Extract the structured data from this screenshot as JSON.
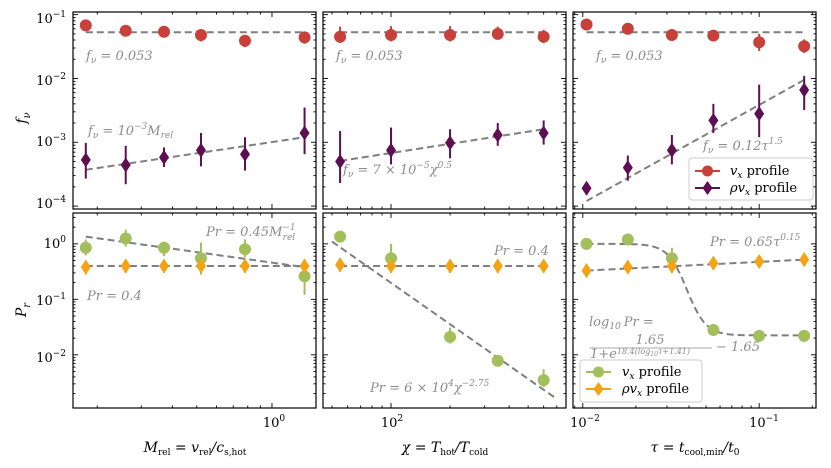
{
  "colors": {
    "red": "#c8403a",
    "purple": "#5e0f52",
    "green": "#a2bf5c",
    "orange": "#f5a313",
    "fit": "#7f7f7f"
  },
  "chart_data": [
    {
      "type": "scatter",
      "panel": "top-left",
      "ylabel": "f_ν",
      "yscale": "log",
      "xscale": "log",
      "xlim": [
        0.16,
        1.5
      ],
      "ylim": [
        9e-05,
        0.11
      ],
      "ytick_labels": [
        "10^-4",
        "10^-3",
        "10^-2",
        "10^-1"
      ],
      "series": [
        {
          "name": "v_x profile",
          "x": [
            0.18,
            0.26,
            0.37,
            0.52,
            0.78,
            1.35
          ],
          "y": [
            0.068,
            0.056,
            0.054,
            0.048,
            0.039,
            0.044
          ],
          "yerr_low": [
            0.059,
            0.048,
            0.047,
            0.038,
            0.031,
            0.035
          ],
          "yerr_high": [
            0.078,
            0.064,
            0.062,
            0.058,
            0.047,
            0.053
          ]
        },
        {
          "name": "ρv_x profile",
          "x": [
            0.18,
            0.26,
            0.37,
            0.52,
            0.78,
            1.35
          ],
          "y": [
            0.00053,
            0.00044,
            0.00058,
            0.00075,
            0.00065,
            0.0014
          ],
          "yerr_low": [
            0.00027,
            0.00022,
            0.00041,
            0.00042,
            0.00036,
            0.00065
          ],
          "yerr_high": [
            0.00098,
            0.00088,
            0.00083,
            0.0014,
            0.0012,
            0.0035
          ]
        }
      ],
      "fits": [
        {
          "y_start": 0.053,
          "y_end": 0.053
        },
        {
          "y_start": 0.00037,
          "y_end": 0.0012
        }
      ],
      "annotations": [
        "f_ν = 0.053",
        "f_ν = 10^-3 M_rel"
      ]
    },
    {
      "type": "scatter",
      "panel": "top-middle",
      "yscale": "log",
      "xscale": "log",
      "series": [
        {
          "name": "v_x profile",
          "x": [
            55,
            100,
            200,
            350,
            600
          ],
          "y": [
            0.045,
            0.048,
            0.048,
            0.05,
            0.045
          ],
          "yerr_low": [
            0.036,
            0.038,
            0.038,
            0.041,
            0.036
          ],
          "yerr_high": [
            0.065,
            0.066,
            0.066,
            0.065,
            0.058
          ]
        },
        {
          "name": "ρv_x profile",
          "x": [
            55,
            100,
            200,
            350,
            600
          ],
          "y": [
            0.0005,
            0.00075,
            0.00098,
            0.0013,
            0.0014
          ],
          "yerr_low": [
            0.00023,
            0.00045,
            0.00056,
            0.00088,
            0.00092
          ],
          "yerr_high": [
            0.0015,
            0.0017,
            0.0016,
            0.002,
            0.0022
          ]
        }
      ],
      "fits": [
        {
          "y_start": 0.053,
          "y_end": 0.053
        },
        {
          "y_start": 0.00051,
          "y_end": 0.0016
        }
      ],
      "annotations": [
        "f_ν = 0.053",
        "f_ν = 7 × 10^-5 χ^0.5"
      ]
    },
    {
      "type": "scatter",
      "panel": "top-right",
      "yscale": "log",
      "xscale": "log",
      "legend_position": "lower right",
      "series": [
        {
          "name": "v_x profile",
          "x": [
            0.0105,
            0.018,
            0.032,
            0.055,
            0.1,
            0.18
          ],
          "y": [
            0.07,
            0.06,
            0.048,
            0.047,
            0.037,
            0.032
          ],
          "yerr_low": [
            0.058,
            0.051,
            0.04,
            0.04,
            0.027,
            0.025
          ],
          "yerr_high": [
            0.082,
            0.069,
            0.057,
            0.055,
            0.05,
            0.041
          ]
        },
        {
          "name": "ρv_x profile",
          "x": [
            0.0105,
            0.018,
            0.032,
            0.055,
            0.1,
            0.18
          ],
          "y": [
            0.00019,
            0.0004,
            0.00075,
            0.0022,
            0.0028,
            0.0066
          ],
          "yerr_low": [
            0.00015,
            0.00025,
            0.00045,
            0.0014,
            0.0012,
            0.0032
          ],
          "yerr_high": [
            0.00024,
            0.00062,
            0.0013,
            0.004,
            0.008,
            0.011
          ]
        }
      ],
      "fits": [
        {
          "y_start": 0.053,
          "y_end": 0.053
        },
        {
          "y_start": 0.00012,
          "y_end": 0.0095
        }
      ],
      "annotations": [
        "f_ν = 0.053",
        "f_ν = 0.12τ^1.5"
      ],
      "legend": [
        "v_x profile",
        "ρv_x profile"
      ]
    },
    {
      "type": "scatter",
      "panel": "bottom-left",
      "ylabel": "P_r",
      "xlabel": "M_rel = v_rel / c_s,hot",
      "yscale": "log",
      "xscale": "log",
      "ylim": [
        0.0011,
        3.6
      ],
      "xtick_labels": [
        "10^0"
      ],
      "ytick_labels": [
        "10^-2",
        "10^-1",
        "10^0"
      ],
      "series": [
        {
          "name": "v_x profile",
          "x": [
            0.18,
            0.26,
            0.37,
            0.52,
            0.78,
            1.35
          ],
          "y": [
            0.85,
            1.25,
            0.85,
            0.55,
            0.8,
            0.26
          ],
          "yerr_low": [
            0.62,
            0.9,
            0.6,
            0.28,
            0.58,
            0.12
          ],
          "yerr_high": [
            1.2,
            1.8,
            1.1,
            1.05,
            1.2,
            0.5
          ]
        },
        {
          "name": "ρv_x profile",
          "x": [
            0.18,
            0.26,
            0.37,
            0.52,
            0.78,
            1.35
          ],
          "y": [
            0.38,
            0.4,
            0.4,
            0.4,
            0.4,
            0.4
          ],
          "yerr_low": [
            0.28,
            0.3,
            0.3,
            0.3,
            0.3,
            0.3
          ],
          "yerr_high": [
            0.5,
            0.52,
            0.52,
            0.52,
            0.52,
            0.52
          ]
        }
      ],
      "fits": [
        {
          "y_start": 1.35,
          "y_end": 0.38
        },
        {
          "y_start": 0.4,
          "y_end": 0.4
        }
      ],
      "annotations": [
        "P_r = 0.45 M_rel^-1",
        "P_r = 0.4"
      ]
    },
    {
      "type": "scatter",
      "panel": "bottom-middle",
      "xlabel": "χ = T_hot / T_cold",
      "yscale": "log",
      "xscale": "log",
      "xtick_labels": [
        "10^2"
      ],
      "series": [
        {
          "name": "v_x profile",
          "x": [
            55,
            100,
            200,
            350,
            600
          ],
          "y": [
            1.35,
            0.55,
            0.021,
            0.0078,
            0.0035
          ],
          "yerr_low": [
            1.2,
            0.33,
            0.016,
            0.0066,
            0.0026
          ],
          "yerr_high": [
            1.5,
            1.0,
            0.031,
            0.0092,
            0.0055
          ]
        },
        {
          "name": "ρv_x profile",
          "x": [
            55,
            100,
            200,
            350,
            600
          ],
          "y": [
            0.42,
            0.4,
            0.4,
            0.4,
            0.4
          ],
          "yerr_low": [
            0.31,
            0.3,
            0.3,
            0.3,
            0.3
          ],
          "yerr_high": [
            0.55,
            0.52,
            0.52,
            0.52,
            0.52
          ]
        }
      ],
      "fits": [
        {
          "y_start": 1.1,
          "y_end": 0.0016
        },
        {
          "y_start": 0.4,
          "y_end": 0.4
        }
      ],
      "annotations": [
        "P_r = 0.4",
        "P_r = 6 × 10^4 χ^-2.75"
      ]
    },
    {
      "type": "scatter",
      "panel": "bottom-right",
      "xlabel": "τ = t_cool,min / t_0",
      "yscale": "log",
      "xscale": "log",
      "legend_position": "lower left",
      "xtick_labels": [
        "10^-2",
        "10^-1"
      ],
      "series": [
        {
          "name": "v_x profile",
          "x": [
            0.0105,
            0.018,
            0.032,
            0.055,
            0.1,
            0.18
          ],
          "y": [
            1.0,
            1.2,
            0.55,
            0.028,
            0.022,
            0.022
          ],
          "yerr_low": [
            0.85,
            0.95,
            0.35,
            0.026,
            0.021,
            0.021
          ],
          "yerr_high": [
            1.15,
            1.5,
            0.85,
            0.031,
            0.024,
            0.024
          ]
        },
        {
          "name": "ρv_x profile",
          "x": [
            0.0105,
            0.018,
            0.032,
            0.055,
            0.1,
            0.18
          ],
          "y": [
            0.33,
            0.38,
            0.4,
            0.45,
            0.48,
            0.52
          ],
          "yerr_low": [
            0.25,
            0.29,
            0.3,
            0.35,
            0.37,
            0.4
          ],
          "yerr_high": [
            0.44,
            0.5,
            0.52,
            0.58,
            0.62,
            0.68
          ]
        }
      ],
      "fits": [
        {
          "y_start": 0.33,
          "y_end": 0.52
        },
        {
          "function": "log10 Pr = 1.65 / (1 + e^(18.4 (log10 τ + 1.41))) - 1.65"
        }
      ],
      "annotations": [
        "P_r = 0.65τ^0.15",
        "log10 Pr =",
        "1.65",
        "1+e^18.4(log10 τ+1.41)",
        "− 1.65"
      ],
      "legend": [
        "v_x profile",
        "ρv_x profile"
      ]
    }
  ],
  "text": {
    "ylabel_top": "f",
    "ylabel_top_sub": "ν",
    "ylabel_bottom": "P",
    "ylabel_bottom_sub": "r",
    "ytop_ticks": [
      {
        "base": "10",
        "exp": "−1"
      },
      {
        "base": "10",
        "exp": "−2"
      },
      {
        "base": "10",
        "exp": "−3"
      },
      {
        "base": "10",
        "exp": "−4"
      }
    ],
    "ybot_ticks": [
      {
        "base": "10",
        "exp": "0"
      },
      {
        "base": "10",
        "exp": "−1"
      },
      {
        "base": "10",
        "exp": "−2"
      }
    ],
    "xtick_left": {
      "base": "10",
      "exp": "0"
    },
    "xtick_mid": {
      "base": "10",
      "exp": "2"
    },
    "xtick_right_1": {
      "base": "10",
      "exp": "−2"
    },
    "xtick_right_2": {
      "base": "10",
      "exp": "−1"
    },
    "xlabel_left": "M",
    "xlabel_left_sub": "rel",
    "xlabel_left_eq": " = v",
    "xlabel_left_sub2": "rel",
    "xlabel_left_div": "/c",
    "xlabel_left_sub3": "s,hot",
    "xlabel_mid": "χ = T",
    "xlabel_mid_sub": "hot",
    "xlabel_mid_div": "/T",
    "xlabel_mid_sub2": "cold",
    "xlabel_right": "τ = t",
    "xlabel_right_sub": "cool,min",
    "xlabel_right_div": "/t",
    "xlabel_right_sub2": "0",
    "ann_tl_1": "f",
    "ann_tl_1_sub": "ν",
    "ann_tl_1_rest": " = 0.053",
    "ann_tl_2": "f",
    "ann_tl_2_sub": "ν",
    "ann_tl_2_mid": " = 10",
    "ann_tl_2_exp": "−3",
    "ann_tl_2_m": "M",
    "ann_tl_2_msub": "rel",
    "ann_tm_1": "f",
    "ann_tm_1_sub": "ν",
    "ann_tm_1_rest": " = 0.053",
    "ann_tm_2": "f",
    "ann_tm_2_sub": "ν",
    "ann_tm_2_mid": " = 7 × 10",
    "ann_tm_2_exp": "−5",
    "ann_tm_2_chi": "χ",
    "ann_tm_2_exp2": "0.5",
    "ann_tr_1": "f",
    "ann_tr_1_sub": "ν",
    "ann_tr_1_rest": " = 0.053",
    "ann_tr_2": "f",
    "ann_tr_2_sub": "ν",
    "ann_tr_2_mid": " = 0.12τ",
    "ann_tr_2_exp": "1.5",
    "ann_bl_1": "Pr = 0.45",
    "ann_bl_1_m": "M",
    "ann_bl_1_exp": "−1",
    "ann_bl_1_sub": "rel",
    "ann_bl_2": "Pr = 0.4",
    "ann_bm_1": "Pr = 0.4",
    "ann_bm_2": "Pr = 6 × 10",
    "ann_bm_2_exp": "4",
    "ann_bm_2_chi": "χ",
    "ann_bm_2_exp2": "−2.75",
    "ann_br_1": "Pr = 0.65τ",
    "ann_br_1_exp": "0.15",
    "ann_br_2": "log",
    "ann_br_2_sub": "10",
    "ann_br_2_rest": "Pr =",
    "ann_br_3_num": "1.65",
    "ann_br_3_den": "1+e",
    "ann_br_3_den_exp": "18.4(log",
    "ann_br_3_den_exp_sub": "10",
    "ann_br_3_den_exp_rest": "τ+1.41)",
    "ann_br_3_tail": "− 1.65",
    "legend_1_a": "v",
    "legend_1_sub": "x",
    "legend_1_b": " profile",
    "legend_2_a": "ρv",
    "legend_2_sub": "x",
    "legend_2_b": " profile"
  }
}
